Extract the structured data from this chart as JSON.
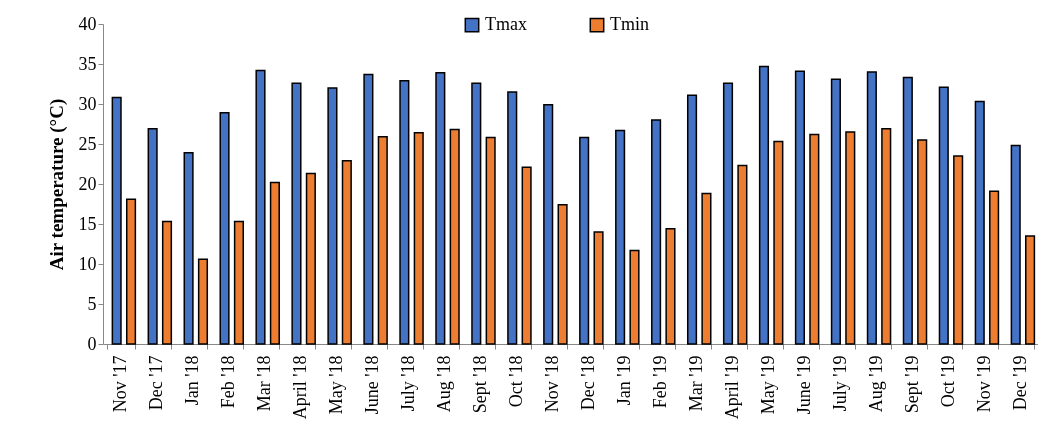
{
  "chart_data": {
    "type": "bar",
    "ylabel": "Air temperature (°C)",
    "categories": [
      "Nov '17",
      "Dec '17",
      "Jan '18",
      "Feb '18",
      "Mar '18",
      "April '18",
      "May '18",
      "June '18",
      "July '18",
      "Aug '18",
      "Sept '18",
      "Oct '18",
      "Nov '18",
      "Dec '18",
      "Jan '19",
      "Feb '19",
      "Mar '19",
      "April '19",
      "May '19",
      "June '19",
      "July '19",
      "Aug '19",
      "Sept '19",
      "Oct '19",
      "Nov '19",
      "Dec '19"
    ],
    "series": [
      {
        "name": "Tmax",
        "color": "#4472c4",
        "values": [
          30.8,
          26.9,
          23.9,
          28.9,
          34.2,
          32.6,
          32.0,
          33.7,
          32.9,
          33.9,
          32.6,
          31.5,
          29.9,
          25.8,
          26.7,
          28.0,
          31.1,
          32.6,
          34.7,
          34.1,
          33.1,
          34.0,
          33.3,
          32.1,
          30.3,
          24.8
        ]
      },
      {
        "name": "Tmin",
        "color": "#ed7d31",
        "values": [
          18.1,
          15.3,
          10.6,
          15.3,
          20.2,
          21.3,
          22.9,
          25.9,
          26.4,
          26.8,
          25.8,
          22.1,
          17.4,
          14.0,
          11.7,
          14.4,
          18.8,
          22.3,
          25.3,
          26.2,
          26.5,
          26.9,
          25.5,
          23.5,
          19.1,
          13.5
        ]
      }
    ],
    "ylim": [
      0,
      40
    ],
    "yticks": [
      0,
      5,
      10,
      15,
      20,
      25,
      30,
      35,
      40
    ],
    "grid": false,
    "legend": "top"
  }
}
